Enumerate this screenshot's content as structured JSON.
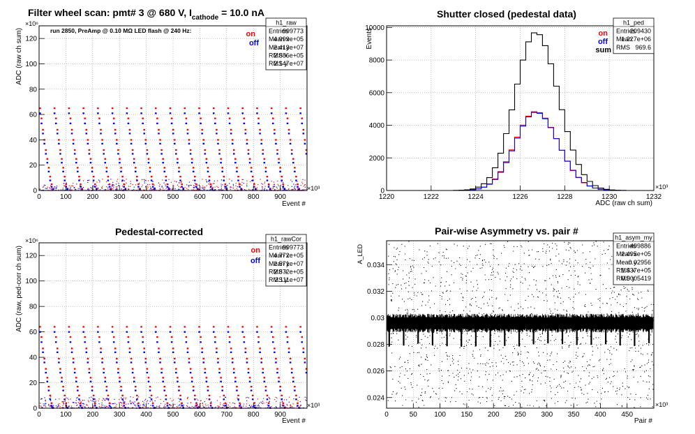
{
  "colors": {
    "on": "#ff0000",
    "off": "#0000ff",
    "sum": "#000000",
    "frame": "#000000",
    "grid": "#bbbbbb"
  },
  "chart_data": [
    {
      "type": "scatter",
      "title_parts": [
        "Filter wheel scan: pmt#   3 @   680 V, I",
        "cathode",
        " = 10.0 nA"
      ],
      "xlabel": "Event #",
      "ylabel": "ADC (raw ch sum)",
      "x_exponent": "×10³",
      "y_exponent": "×10⁶",
      "xlim": [
        0,
        1000
      ],
      "ylim": [
        0,
        130
      ],
      "xticks": [
        0,
        100,
        200,
        300,
        400,
        500,
        600,
        700,
        800,
        900
      ],
      "yticks": [
        0,
        20,
        40,
        60,
        80,
        100,
        120
      ],
      "grid": true,
      "annotation": "run 2850, PreAmp @ 0.10 MΩ  LED flash @  240 Hz:",
      "legend": [
        "on",
        "off"
      ],
      "stats": {
        "name": "h1_raw",
        "rows": [
          [
            "Entries",
            "999773"
          ],
          [
            "Mean x",
            "4.999e+05"
          ],
          [
            "Mean y",
            "2.413e+07"
          ],
          [
            "RMS x",
            "2.886e+05"
          ],
          [
            "RMS y",
            "2.147e+07"
          ]
        ]
      },
      "cycle_period": 54,
      "levels_on": [
        65,
        57,
        48,
        40,
        32,
        25,
        18,
        11,
        5,
        1.5
      ],
      "levels_off": [
        61,
        53,
        45,
        37,
        29,
        22,
        15,
        8,
        3,
        1
      ]
    },
    {
      "type": "histogram",
      "title": "Shutter closed (pedestal data)",
      "xlabel": "ADC (raw ch sum)",
      "ylabel": "Events",
      "x_exponent": "×10³",
      "xlim": [
        1220,
        1232
      ],
      "ylim": [
        0,
        10100
      ],
      "xticks": [
        1220,
        1222,
        1224,
        1226,
        1228,
        1230,
        1232
      ],
      "yticks": [
        0,
        2000,
        4000,
        6000,
        8000,
        10000
      ],
      "grid": true,
      "legend": [
        "on",
        "off",
        "sum"
      ],
      "stats": {
        "name": "h1_ped",
        "rows": [
          [
            "Entries",
            "209430"
          ],
          [
            "Mean",
            "1.227e+06"
          ],
          [
            "RMS",
            "969.6"
          ]
        ]
      },
      "mean": 1226.7,
      "sigma": 0.97,
      "peak_sum": 9700,
      "peak_on": 4850,
      "peak_off": 4800,
      "bin_width": 0.25
    },
    {
      "type": "scatter",
      "title": "Pedestal-corrected",
      "xlabel": "Event #",
      "ylabel": "ADC (raw, ped-corr ch sum)",
      "x_exponent": "×10³",
      "y_exponent": "×10⁶",
      "xlim": [
        0,
        1000
      ],
      "ylim": [
        0,
        130
      ],
      "xticks": [
        0,
        100,
        200,
        300,
        400,
        500,
        600,
        700,
        800,
        900
      ],
      "yticks": [
        0,
        20,
        40,
        60,
        80,
        100,
        120
      ],
      "grid": true,
      "legend": [
        "on",
        "off"
      ],
      "stats": {
        "name": "h1_rawCor",
        "rows": [
          [
            "Entries",
            "999773"
          ],
          [
            "Mean x",
            "4.772e+05"
          ],
          [
            "Mean y",
            "2.571e+07"
          ],
          [
            "RMS x",
            "2.872e+05"
          ],
          [
            "RMS y",
            "2.111e+07"
          ]
        ]
      },
      "cycle_period": 54,
      "levels_on": [
        64,
        56,
        47,
        39,
        31,
        24,
        17,
        10,
        4,
        0.5
      ],
      "levels_off": [
        60,
        52,
        44,
        36,
        28,
        21,
        14,
        7,
        2,
        0.2
      ]
    },
    {
      "type": "scatter",
      "title": "Pair-wise Asymmetry vs. pair #",
      "xlabel": "Pair #",
      "ylabel": "A_LED",
      "x_exponent": "×10³",
      "xlim": [
        0,
        500
      ],
      "ylim": [
        0.0232,
        0.0358
      ],
      "xticks": [
        0,
        50,
        100,
        150,
        200,
        250,
        300,
        350,
        400,
        450
      ],
      "yticks": [
        0.024,
        0.026,
        0.028,
        0.03,
        0.032,
        0.034
      ],
      "ytick_labels": [
        "0.024",
        "0.026",
        "0.028",
        "0.03",
        "0.032",
        "0.034"
      ],
      "grid": true,
      "stats": {
        "name": "h1_asym_my",
        "rows": [
          [
            "Entries",
            "499886"
          ],
          [
            "Mean x",
            "2.495e+05"
          ],
          [
            "Mean y",
            "0.02956"
          ],
          [
            "RMS x",
            "1.437e+05"
          ],
          [
            "RMS y",
            "0.0005419"
          ]
        ]
      },
      "band_center": 0.0296,
      "band_halfwidth": 0.0006,
      "spike_period": 27,
      "spike_low": 0.0278
    }
  ]
}
